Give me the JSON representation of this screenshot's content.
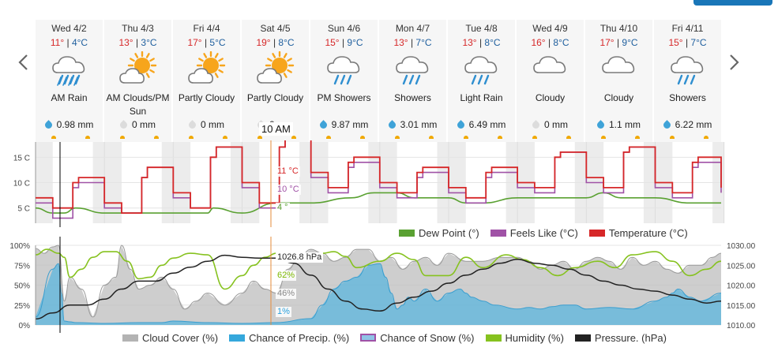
{
  "nav": {
    "prev_icon": "chevron-left-icon",
    "next_icon": "chevron-right-icon"
  },
  "days": [
    {
      "date": "Wed 4/2",
      "hi": "11°",
      "lo": "4°C",
      "icon": "rain-cloud-icon",
      "cond": [
        "AM Rain"
      ],
      "precip": "0.98 mm",
      "wet": true
    },
    {
      "date": "Thu 4/3",
      "hi": "13°",
      "lo": "3°C",
      "icon": "sun-behind-cloud-icon",
      "cond": [
        "AM Clouds/PM",
        "Sun"
      ],
      "precip": "0 mm",
      "wet": false
    },
    {
      "date": "Fri 4/4",
      "hi": "17°",
      "lo": "5°C",
      "icon": "sun-behind-cloud-icon",
      "cond": [
        "Partly Cloudy"
      ],
      "precip": "0 mm",
      "wet": false
    },
    {
      "date": "Sat 4/5",
      "hi": "19°",
      "lo": "8°C",
      "icon": "sun-behind-cloud-icon",
      "cond": [
        "Partly Cloudy"
      ],
      "precip": "0 mm",
      "wet": false
    },
    {
      "date": "Sun 4/6",
      "hi": "15°",
      "lo": "9°C",
      "icon": "shower-cloud-icon",
      "cond": [
        "PM Showers"
      ],
      "precip": "9.87 mm",
      "wet": true
    },
    {
      "date": "Mon 4/7",
      "hi": "13°",
      "lo": "7°C",
      "icon": "shower-cloud-icon",
      "cond": [
        "Showers"
      ],
      "precip": "3.01 mm",
      "wet": true
    },
    {
      "date": "Tue 4/8",
      "hi": "13°",
      "lo": "8°C",
      "icon": "shower-cloud-icon",
      "cond": [
        "Light Rain"
      ],
      "precip": "6.49 mm",
      "wet": true
    },
    {
      "date": "Wed 4/9",
      "hi": "16°",
      "lo": "8°C",
      "icon": "cloud-icon",
      "cond": [
        "Cloudy"
      ],
      "precip": "0 mm",
      "wet": false
    },
    {
      "date": "Thu 4/10",
      "hi": "17°",
      "lo": "9°C",
      "icon": "cloud-icon",
      "cond": [
        "Cloudy"
      ],
      "precip": "1.1 mm",
      "wet": true
    },
    {
      "date": "Fri 4/11",
      "hi": "15°",
      "lo": "7°C",
      "icon": "shower-cloud-icon",
      "cond": [
        "Showers"
      ],
      "precip": "6.22 mm",
      "wet": true
    }
  ],
  "tooltip": {
    "time": "10 AM",
    "temperature": "11 °C",
    "feels_like": "10 °C",
    "dew_point": "4 °",
    "pressure": "1026.8 hPa",
    "humidity": "62%",
    "cloud_cover": "46%",
    "precip_chance": "1%"
  },
  "legends": {
    "temperature": [
      {
        "label": "Dew Point (°)",
        "color": "#5aa132"
      },
      {
        "label": "Feels Like (°C)",
        "color": "#a052a6"
      },
      {
        "label": "Temperature (°C)",
        "color": "#d62728"
      }
    ],
    "lower": [
      {
        "label": "Cloud Cover (%)",
        "color": "#b3b3b3"
      },
      {
        "label": "Chance of Precip. (%)",
        "color": "#35a8dc"
      },
      {
        "label": "Chance of Snow (%)",
        "color": "#a052a6"
      },
      {
        "label": "Humidity (%)",
        "color": "#86c21f"
      },
      {
        "label": "Pressure. (hPa)",
        "color": "#222222"
      }
    ]
  },
  "chart_data": [
    {
      "type": "line",
      "x_unit": "hours from Wed 4/2 00:00",
      "y_ticks": [
        "5 C",
        "10 C",
        "15 C"
      ],
      "ylim": [
        2,
        18
      ],
      "series": [
        {
          "name": "Temperature (°C)",
          "color": "#d62728",
          "x": [
            0,
            6,
            9,
            13,
            15,
            24,
            30,
            33,
            37,
            39,
            48,
            54,
            57,
            61,
            63,
            72,
            78,
            81,
            85,
            87,
            96,
            102,
            105,
            109,
            111,
            120,
            126,
            129,
            133,
            135,
            144,
            150,
            153,
            157,
            159,
            168,
            174,
            177,
            181,
            183,
            192,
            198,
            201,
            205,
            207,
            216,
            222,
            225,
            229,
            231,
            239
          ],
          "y": [
            7,
            5,
            5,
            10,
            11,
            6,
            4,
            4,
            11,
            13,
            8,
            5,
            5,
            15,
            17,
            10,
            6,
            6,
            17,
            19,
            12,
            9,
            9,
            14,
            15,
            10,
            8,
            8,
            12,
            13,
            9,
            7,
            7,
            12,
            13,
            10,
            9,
            9,
            15,
            16,
            11,
            9,
            9,
            16,
            17,
            10,
            8,
            8,
            14,
            15,
            9
          ]
        },
        {
          "name": "Feels Like (°C)",
          "color": "#a052a6",
          "x": [
            0,
            6,
            9,
            13,
            15,
            24,
            30,
            33,
            37,
            39,
            48,
            54,
            57,
            61,
            63,
            72,
            78,
            81,
            85,
            87,
            96,
            102,
            105,
            109,
            111,
            120,
            126,
            129,
            133,
            135,
            144,
            150,
            153,
            157,
            159,
            168,
            174,
            177,
            181,
            183,
            192,
            198,
            201,
            205,
            207,
            216,
            222,
            225,
            229,
            231,
            239
          ],
          "y": [
            6,
            3,
            3,
            9,
            10,
            5,
            4,
            4,
            11,
            13,
            7,
            5,
            5,
            15,
            17,
            9,
            5,
            5,
            17,
            19,
            11,
            8,
            8,
            13,
            14,
            9,
            7,
            7,
            11,
            12,
            8,
            6,
            6,
            11,
            12,
            9,
            8,
            8,
            15,
            16,
            10,
            8,
            8,
            16,
            17,
            9,
            7,
            7,
            13,
            14,
            8
          ]
        },
        {
          "name": "Dew Point (°)",
          "color": "#5aa132",
          "x": [
            0,
            6,
            10,
            14,
            24,
            36,
            48,
            60,
            62,
            72,
            84,
            92,
            96,
            110,
            118,
            126,
            132,
            144,
            150,
            156,
            168,
            180,
            192,
            198,
            204,
            216,
            228,
            239
          ],
          "y": [
            5,
            4,
            4,
            5,
            4,
            4,
            4,
            4,
            5,
            4,
            6,
            6,
            6,
            7,
            8,
            8,
            7,
            7,
            6,
            6,
            7,
            7,
            7,
            8,
            7,
            7,
            6,
            6
          ]
        }
      ]
    },
    {
      "type": "area",
      "x_unit": "hours from Wed 4/2 00:00",
      "ylim_left": [
        0,
        100
      ],
      "ylim_right": [
        1010,
        1030
      ],
      "y_ticks_left": [
        "0%",
        "25%",
        "50%",
        "75%",
        "100%"
      ],
      "y_ticks_right": [
        "1010.00",
        "1015.00",
        "1020.00",
        "1025.00",
        "1030.00"
      ],
      "series": [
        {
          "name": "Cloud Cover (%)",
          "color": "#b3b3b3",
          "axis": "left",
          "x": [
            0,
            3,
            6,
            8,
            10,
            12,
            16,
            20,
            24,
            28,
            30,
            33,
            36,
            40,
            44,
            48,
            52,
            56,
            60,
            66,
            72,
            76,
            80,
            84,
            88,
            92,
            96,
            100,
            104,
            108,
            112,
            116,
            120,
            124,
            128,
            132,
            136,
            140,
            144,
            150,
            156,
            162,
            168,
            172,
            176,
            180,
            184,
            188,
            192,
            196,
            200,
            204,
            208,
            212,
            216,
            220,
            224,
            228,
            232,
            236,
            239
          ],
          "y": [
            96,
            90,
            98,
            100,
            30,
            60,
            45,
            10,
            50,
            60,
            100,
            70,
            45,
            50,
            60,
            45,
            20,
            30,
            40,
            25,
            40,
            55,
            45,
            40,
            70,
            85,
            95,
            90,
            80,
            85,
            95,
            95,
            80,
            85,
            70,
            80,
            85,
            75,
            90,
            80,
            80,
            85,
            85,
            80,
            70,
            75,
            80,
            70,
            80,
            85,
            80,
            70,
            85,
            75,
            80,
            70,
            65,
            75,
            75,
            85,
            90
          ]
        },
        {
          "name": "Chance of Precip. (%)",
          "color": "#35a8dc",
          "axis": "left",
          "x": [
            0,
            6,
            8,
            9,
            10,
            12,
            14,
            24,
            36,
            40,
            44,
            48,
            60,
            72,
            84,
            96,
            100,
            104,
            108,
            112,
            116,
            120,
            122,
            124,
            126,
            128,
            130,
            132,
            136,
            140,
            144,
            148,
            150,
            152,
            156,
            160,
            168,
            172,
            176,
            180,
            184,
            188,
            192,
            200,
            208,
            216,
            220,
            222,
            224,
            228,
            232,
            239
          ],
          "y": [
            10,
            70,
            77,
            40,
            5,
            4,
            3,
            2,
            3,
            3,
            3,
            5,
            3,
            2,
            3,
            8,
            25,
            45,
            55,
            60,
            75,
            77,
            60,
            40,
            20,
            25,
            35,
            30,
            45,
            30,
            40,
            45,
            40,
            35,
            30,
            25,
            20,
            22,
            20,
            23,
            25,
            25,
            20,
            22,
            20,
            30,
            35,
            40,
            45,
            35,
            30,
            40
          ]
        },
        {
          "name": "Humidity (%)",
          "color": "#86c21f",
          "axis": "left",
          "x": [
            0,
            4,
            8,
            10,
            12,
            16,
            20,
            24,
            28,
            32,
            36,
            40,
            44,
            48,
            54,
            60,
            66,
            72,
            76,
            80,
            84,
            88,
            92,
            96,
            100,
            104,
            108,
            112,
            120,
            126,
            132,
            136,
            144,
            150,
            156,
            164,
            170,
            176,
            182,
            188,
            196,
            202,
            208,
            216,
            222,
            228,
            234,
            239
          ],
          "y": [
            88,
            95,
            90,
            85,
            60,
            70,
            85,
            92,
            92,
            80,
            58,
            60,
            75,
            84,
            90,
            88,
            45,
            62,
            75,
            85,
            90,
            80,
            85,
            85,
            90,
            92,
            86,
            72,
            80,
            90,
            82,
            62,
            62,
            85,
            72,
            88,
            82,
            72,
            62,
            72,
            80,
            72,
            88,
            92,
            80,
            62,
            70,
            80
          ]
        },
        {
          "name": "Pressure. (hPa)",
          "color": "#222222",
          "axis": "right",
          "x": [
            0,
            6,
            12,
            18,
            24,
            30,
            36,
            42,
            48,
            54,
            60,
            66,
            72,
            78,
            84,
            90,
            96,
            102,
            108,
            114,
            120,
            126,
            132,
            138,
            144,
            150,
            156,
            162,
            168,
            174,
            180,
            186,
            192,
            198,
            204,
            210,
            216,
            222,
            228,
            234,
            239
          ],
          "y": [
            1011.5,
            1013,
            1015,
            1015,
            1016.5,
            1019,
            1021,
            1021,
            1023,
            1024.5,
            1026,
            1027.5,
            1027,
            1026.8,
            1026.8,
            1025.5,
            1022.5,
            1019,
            1016,
            1014,
            1013.5,
            1015.5,
            1017,
            1018.5,
            1020.5,
            1022.5,
            1024,
            1025.5,
            1026.5,
            1025.5,
            1025,
            1024,
            1022.5,
            1021,
            1020,
            1019,
            1018.5,
            1017.5,
            1016.5,
            1015.5,
            1016
          ]
        }
      ]
    }
  ]
}
